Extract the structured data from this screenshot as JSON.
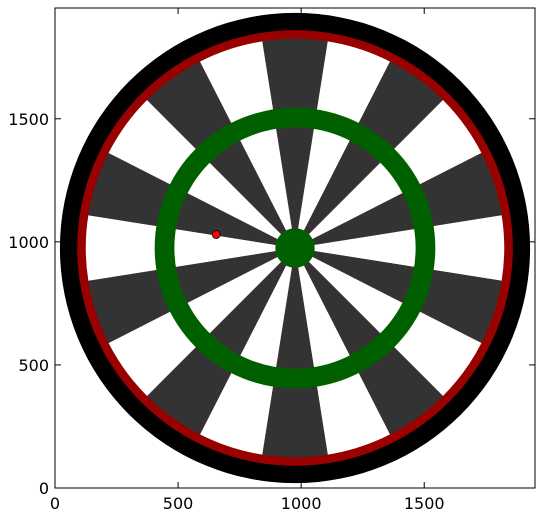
{
  "chart_data": {
    "type": "scatter",
    "title": "",
    "xlabel": "",
    "ylabel": "",
    "xlim": [
      0,
      1950
    ],
    "ylim": [
      0,
      1950
    ],
    "xticks": [
      0,
      500,
      1000,
      1500
    ],
    "yticks": [
      0,
      500,
      1000,
      1500
    ],
    "grid": false,
    "legend": "none",
    "background_image": "dartboard",
    "dartboard": {
      "center": [
        975,
        975
      ],
      "outer_radius": 955,
      "double_ring_outer_radius": 885,
      "double_ring_inner_radius": 850,
      "treble_ring_outer_radius": 570,
      "treble_ring_inner_radius": 490,
      "bull_radius": 80,
      "segment_count": 20,
      "colors": {
        "frame": "#000000",
        "double_ring": "#990000",
        "treble_ring": "#006000",
        "bull": "#006000",
        "dark_segment": "#333333",
        "light_segment": "#ffffff"
      }
    },
    "points": [
      {
        "x": 655,
        "y": 1030,
        "color": "#ff0000"
      }
    ]
  }
}
